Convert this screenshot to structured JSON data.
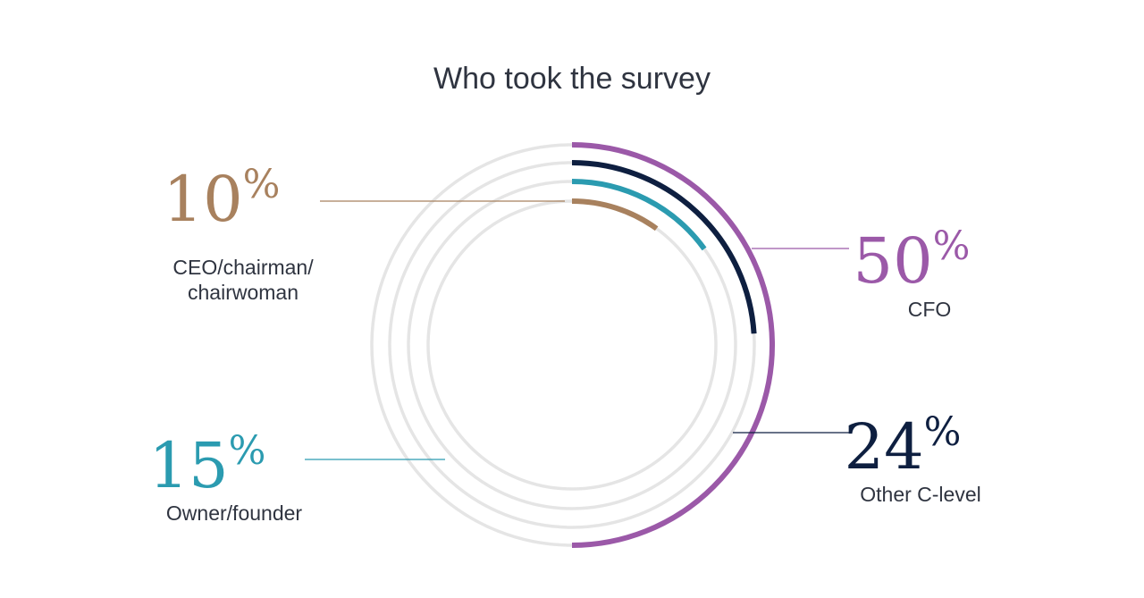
{
  "chart_data": {
    "type": "radial-bar",
    "title": "Who took the survey",
    "unit": "%",
    "series": [
      {
        "name": "CFO",
        "value": 50,
        "color": "#9b59a8"
      },
      {
        "name": "Other C-level",
        "value": 24,
        "color": "#0e1f40"
      },
      {
        "name": "Owner/founder",
        "value": 15,
        "color": "#2b9bb0"
      },
      {
        "name": "CEO/chairman/ chairwoman",
        "value": 10,
        "color": "#a8815e"
      }
    ],
    "track_color": "#e5e5e5"
  }
}
